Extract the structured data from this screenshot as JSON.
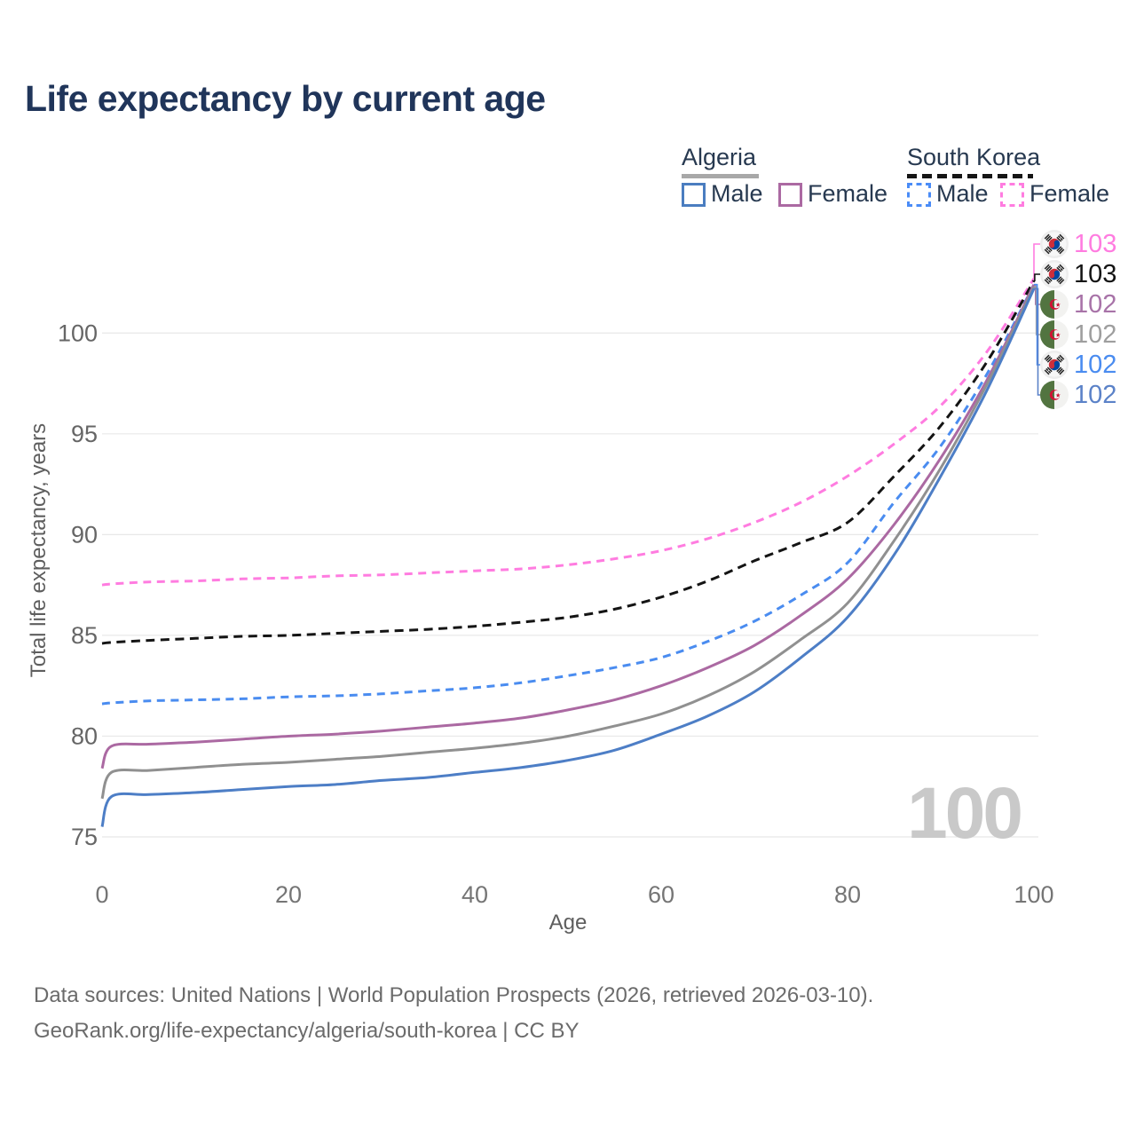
{
  "title": "Life expectancy by current age",
  "legend": {
    "algeria": {
      "label": "Algeria",
      "male_label": "Male",
      "female_label": "Female"
    },
    "south_korea": {
      "label": "South Korea",
      "male_label": "Male",
      "female_label": "Female"
    }
  },
  "colors": {
    "algeria_male": "#4d7ec6",
    "algeria_female": "#ab69a2",
    "algeria_total": "#909090",
    "korea_male": "#4a8cf0",
    "korea_female": "#ff7ce0",
    "korea_total": "#141414",
    "grid": "#e8e8e8",
    "title_text": "#20355a",
    "watermark": "#c9c9c9"
  },
  "watermark_age": "100",
  "end_labels": [
    {
      "flag": "south-korea",
      "series": "South Korea Female",
      "value": "103",
      "color": "#ff7ce0"
    },
    {
      "flag": "south-korea",
      "series": "South Korea Both sexes",
      "value": "103",
      "color": "#141414"
    },
    {
      "flag": "algeria",
      "series": "Algeria Female",
      "value": "102",
      "color": "#a873a8"
    },
    {
      "flag": "algeria",
      "series": "Algeria Both sexes",
      "value": "102",
      "color": "#9e9e9e"
    },
    {
      "flag": "south-korea",
      "series": "South Korea Male",
      "value": "102",
      "color": "#4a8cf0"
    },
    {
      "flag": "algeria",
      "series": "Algeria Male",
      "value": "102",
      "color": "#5b82c8"
    }
  ],
  "footer": {
    "line1": "Data sources: United Nations | World Population Prospects (2026, retrieved 2026-03-10).",
    "line2": "GeoRank.org/life-expectancy/algeria/south-korea | CC BY"
  },
  "chart_data": {
    "type": "line",
    "title": "Life expectancy by current age",
    "xlabel": "Age",
    "ylabel": "Total life expectancy, years",
    "xlim": [
      0,
      100
    ],
    "ylim": [
      75,
      103.5
    ],
    "x_ticks": [
      0,
      20,
      40,
      60,
      80,
      100
    ],
    "y_ticks": [
      75,
      80,
      85,
      90,
      95,
      100
    ],
    "grid": "horizontal",
    "legend_position": "top-right",
    "x": [
      0,
      1,
      5,
      10,
      15,
      20,
      25,
      30,
      35,
      40,
      45,
      50,
      55,
      60,
      65,
      70,
      75,
      80,
      85,
      90,
      95,
      100
    ],
    "series": [
      {
        "name": "South Korea Female",
        "country": "South Korea",
        "sex": "Female",
        "color": "#ff7ce0",
        "dash": "dashed",
        "values": [
          87.5,
          87.55,
          87.65,
          87.7,
          87.8,
          87.85,
          87.95,
          88.0,
          88.1,
          88.2,
          88.3,
          88.5,
          88.8,
          89.2,
          89.8,
          90.6,
          91.6,
          92.9,
          94.5,
          96.4,
          99.1,
          102.7
        ]
      },
      {
        "name": "South Korea Both sexes",
        "country": "South Korea",
        "sex": "Both",
        "color": "#141414",
        "dash": "dashed",
        "values": [
          84.6,
          84.65,
          84.75,
          84.85,
          84.95,
          85.0,
          85.1,
          85.2,
          85.3,
          85.45,
          85.65,
          85.9,
          86.3,
          86.9,
          87.7,
          88.7,
          89.6,
          90.6,
          92.9,
          95.4,
          98.6,
          102.6
        ]
      },
      {
        "name": "South Korea Male",
        "country": "South Korea",
        "sex": "Male",
        "color": "#4a8cf0",
        "dash": "dashed",
        "values": [
          81.6,
          81.65,
          81.75,
          81.8,
          81.85,
          81.95,
          82.0,
          82.1,
          82.25,
          82.4,
          82.65,
          83.0,
          83.4,
          83.9,
          84.7,
          85.7,
          87.0,
          88.6,
          91.6,
          94.4,
          98.0,
          102.4
        ]
      },
      {
        "name": "Algeria Female",
        "country": "Algeria",
        "sex": "Female",
        "color": "#ab69a2",
        "dash": "solid",
        "values": [
          78.4,
          79.5,
          79.6,
          79.7,
          79.85,
          80.0,
          80.1,
          80.25,
          80.45,
          80.65,
          80.9,
          81.3,
          81.8,
          82.5,
          83.4,
          84.5,
          86.0,
          87.8,
          90.5,
          93.8,
          97.7,
          102.4
        ]
      },
      {
        "name": "Algeria Both sexes",
        "country": "Algeria",
        "sex": "Both",
        "color": "#909090",
        "dash": "solid",
        "values": [
          76.9,
          78.2,
          78.3,
          78.45,
          78.6,
          78.7,
          78.85,
          79.0,
          79.2,
          79.4,
          79.65,
          80.0,
          80.5,
          81.1,
          82.0,
          83.2,
          84.8,
          86.6,
          89.7,
          93.3,
          97.5,
          102.3
        ]
      },
      {
        "name": "Algeria Male",
        "country": "Algeria",
        "sex": "Male",
        "color": "#4d7ec6",
        "dash": "solid",
        "values": [
          75.5,
          77.0,
          77.1,
          77.2,
          77.35,
          77.5,
          77.6,
          77.8,
          77.95,
          78.2,
          78.45,
          78.8,
          79.3,
          80.1,
          81.0,
          82.2,
          83.9,
          85.9,
          89.0,
          92.9,
          97.2,
          102.2
        ]
      }
    ]
  }
}
